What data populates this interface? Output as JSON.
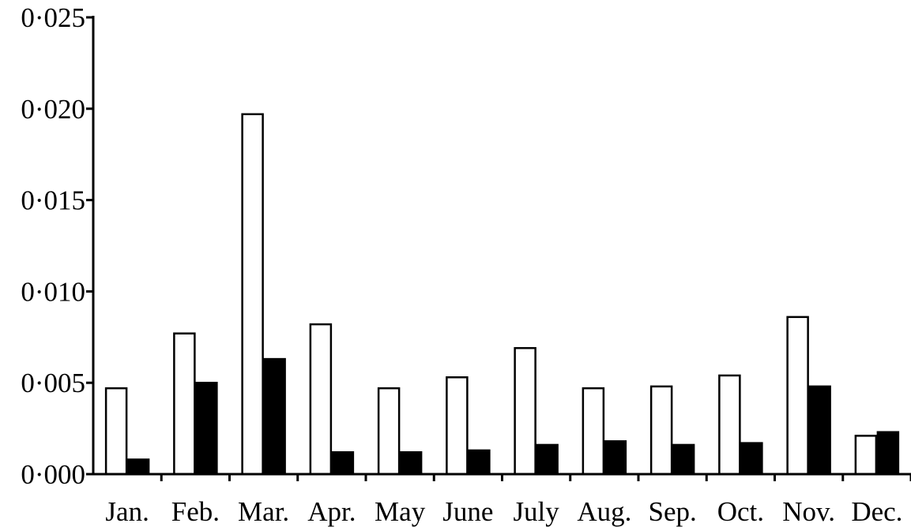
{
  "chart_data": {
    "type": "bar",
    "title": "",
    "xlabel": "",
    "ylabel": "",
    "categories": [
      "Jan.",
      "Feb.",
      "Mar.",
      "Apr.",
      "May",
      "June",
      "July",
      "Aug.",
      "Sep.",
      "Oct.",
      "Nov.",
      "Dec."
    ],
    "series": [
      {
        "color": "#ffffff",
        "values": [
          0.0047,
          0.0077,
          0.0197,
          0.0082,
          0.0047,
          0.0053,
          0.0069,
          0.0047,
          0.0048,
          0.0054,
          0.0086,
          0.0021
        ]
      },
      {
        "color": "#000000",
        "values": [
          0.0008,
          0.005,
          0.0063,
          0.0012,
          0.0012,
          0.0013,
          0.0016,
          0.0018,
          0.0016,
          0.0017,
          0.0048,
          0.0023
        ]
      }
    ],
    "ylim": [
      0,
      0.025
    ],
    "yticks": [
      "0·000",
      "0·005",
      "0·010",
      "0·015",
      "0·020",
      "0·025"
    ],
    "grid": false,
    "legend": "none"
  }
}
